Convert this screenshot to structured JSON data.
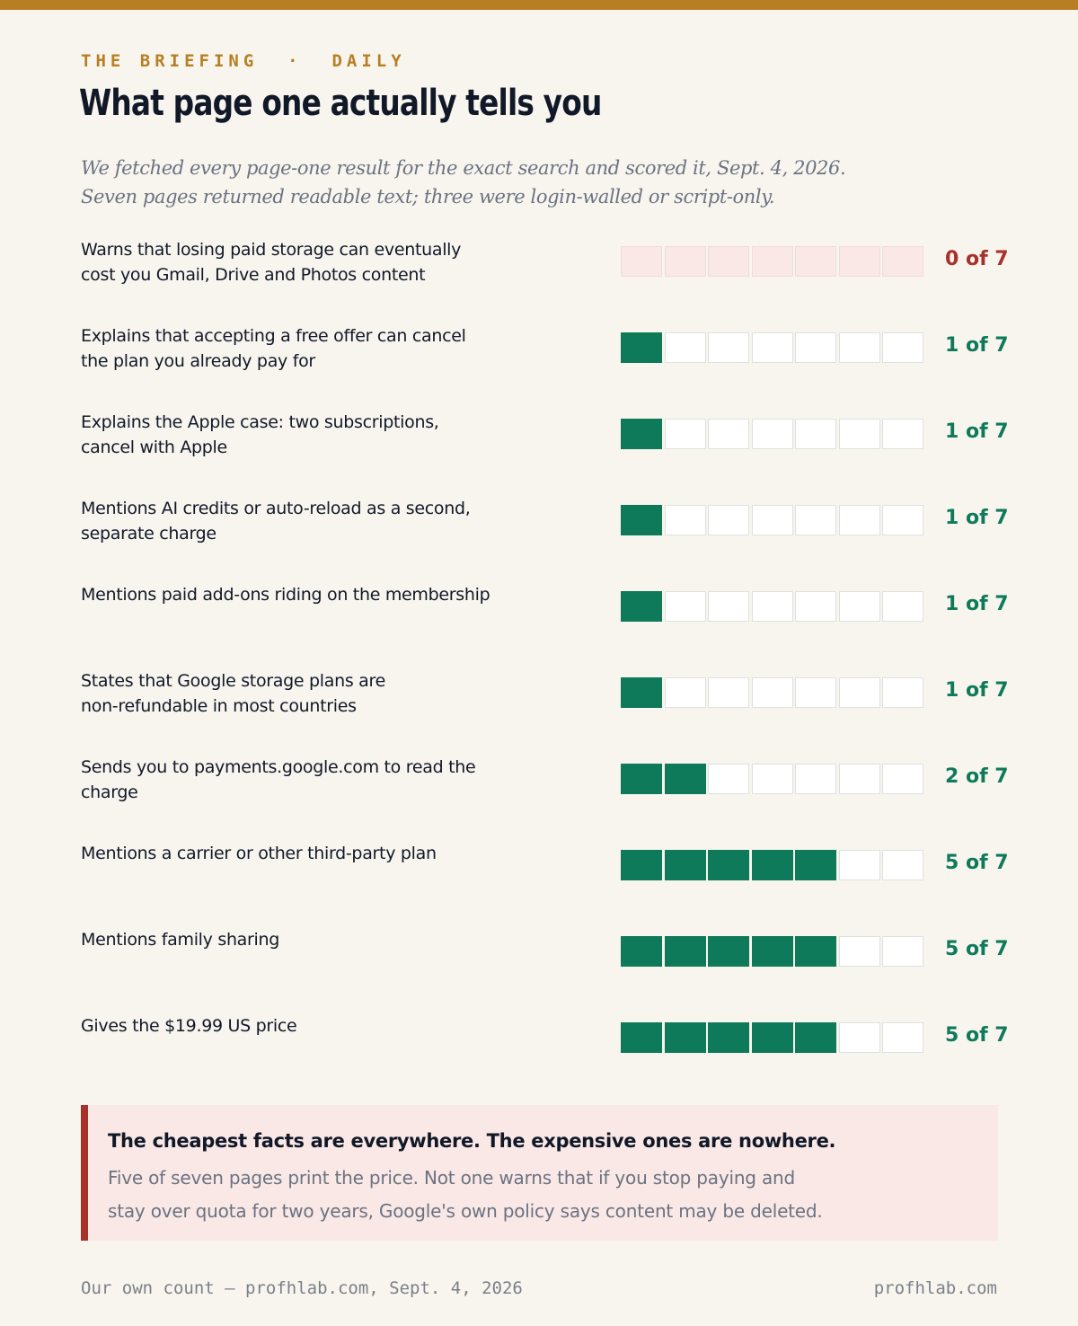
{
  "header": {
    "kicker": "THE BRIEFING  ·  DAILY",
    "title": "What page one actually tells you",
    "subtitle_lines": [
      "We fetched every page-one result for the exact search and scored it, Sept. 4, 2026.",
      "Seven pages returned readable text; three were login-walled or script-only."
    ]
  },
  "chart_data": {
    "type": "bar",
    "total": 7,
    "categories": [
      "Warns that losing paid storage can eventually cost you Gmail, Drive and Photos content",
      "Explains that accepting a free offer can cancel the plan you already pay for",
      "Explains the Apple case: two subscriptions, cancel with Apple",
      "Mentions AI credits or auto-reload as a second, separate charge",
      "Mentions paid add-ons riding on the membership",
      "States that Google storage plans are non-refundable in most countries",
      "Sends you to payments.google.com to read the charge",
      "Mentions a carrier or other third-party plan",
      "Mentions family sharing",
      "Gives the $19.99 US price"
    ],
    "rows": [
      {
        "label_lines": [
          "Warns that losing paid storage can eventually",
          "cost you Gmail, Drive and Photos content"
        ],
        "value": 0,
        "count_label": "0 of 7"
      },
      {
        "label_lines": [
          "Explains that accepting a free offer can cancel",
          "the plan you already pay for"
        ],
        "value": 1,
        "count_label": "1 of 7"
      },
      {
        "label_lines": [
          "Explains the Apple case: two subscriptions,",
          "cancel with Apple"
        ],
        "value": 1,
        "count_label": "1 of 7"
      },
      {
        "label_lines": [
          "Mentions AI credits or auto-reload as a second,",
          "separate charge"
        ],
        "value": 1,
        "count_label": "1 of 7"
      },
      {
        "label_lines": [
          "Mentions paid add-ons riding on the membership"
        ],
        "value": 1,
        "count_label": "1 of 7"
      },
      {
        "label_lines": [
          "States that Google storage plans are",
          "non-refundable in most countries"
        ],
        "value": 1,
        "count_label": "1 of 7"
      },
      {
        "label_lines": [
          "Sends you to payments.google.com to read the",
          "charge"
        ],
        "value": 2,
        "count_label": "2 of 7"
      },
      {
        "label_lines": [
          "Mentions a carrier or other third-party plan"
        ],
        "value": 5,
        "count_label": "5 of 7"
      },
      {
        "label_lines": [
          "Mentions family sharing"
        ],
        "value": 5,
        "count_label": "5 of 7"
      },
      {
        "label_lines": [
          "Gives the $19.99 US price"
        ],
        "value": 5,
        "count_label": "5 of 7"
      }
    ],
    "colors": {
      "filled": "#0f7a5a",
      "empty": "#ffffff",
      "zero": "#f9e8e6",
      "zero_text": "#a8322a"
    }
  },
  "callout": {
    "headline": "The cheapest facts are everywhere. The expensive ones are nowhere.",
    "body_lines": [
      "Five of seven pages print the price. Not one warns that if you stop paying and",
      "stay over quota for two years, Google's own policy says content may be deleted."
    ]
  },
  "footer": {
    "source": "Our own count — profhlab.com, Sept. 4, 2026",
    "brand": "profhlab.com"
  },
  "colors": {
    "accent": "#b87f22",
    "ink": "#111827",
    "muted": "#6b7280",
    "background": "#f8f5ef"
  }
}
